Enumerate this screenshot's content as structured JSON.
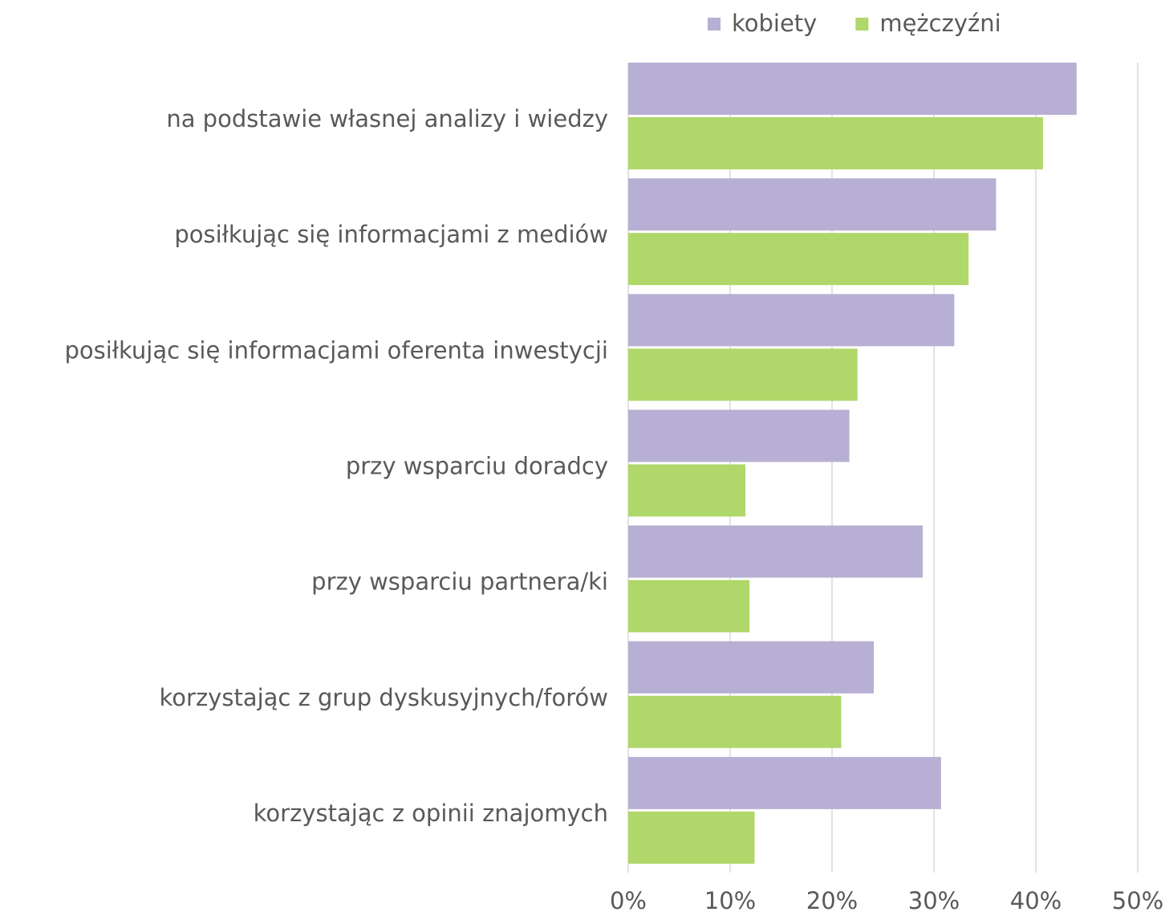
{
  "chart_data": {
    "type": "barh",
    "categories": [
      "na podstawie własnej analizy i wiedzy",
      "posiłkując się informacjami z mediów",
      "posiłkując się informacjami oferenta inwestycji",
      "przy wsparciu doradcy",
      "przy wsparciu partnera/ki",
      "korzystając z grup dyskusyjnych/forów",
      "korzystając z opinii znajomych"
    ],
    "series": [
      {
        "name": "kobiety",
        "color": "#b8afd4",
        "values": [
          44.0,
          36.1,
          32.0,
          21.7,
          28.9,
          24.1,
          30.7
        ]
      },
      {
        "name": "mężczyźni",
        "color": "#b0d76a",
        "values": [
          40.7,
          33.4,
          22.5,
          11.5,
          11.9,
          20.9,
          12.4
        ]
      }
    ],
    "xlim": [
      0,
      50
    ],
    "xticks": [
      {
        "value": 0,
        "label": "0%"
      },
      {
        "value": 10,
        "label": "10%"
      },
      {
        "value": 20,
        "label": "20%"
      },
      {
        "value": 30,
        "label": "30%"
      },
      {
        "value": 40,
        "label": "40%"
      },
      {
        "value": 50,
        "label": "50%"
      }
    ],
    "grid": true,
    "legend": "top"
  }
}
